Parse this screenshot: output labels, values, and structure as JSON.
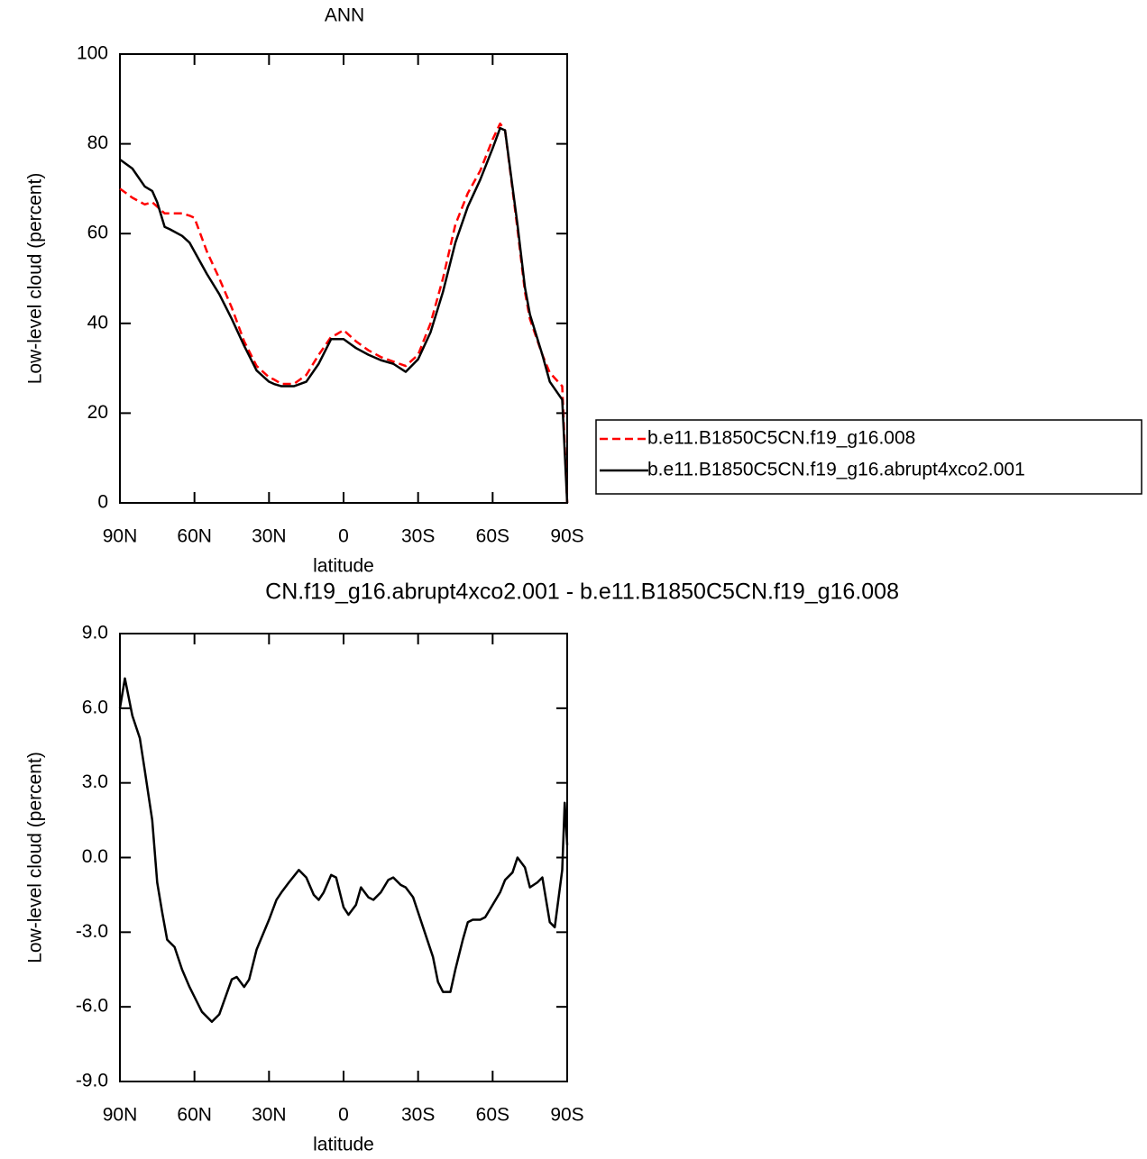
{
  "chart_data": [
    {
      "type": "line",
      "title": "ANN",
      "x_label": "latitude",
      "y_label": "Low-level cloud (percent)",
      "x": [
        90,
        85,
        80,
        77,
        75,
        72,
        70,
        65,
        62,
        60,
        55,
        50,
        45,
        40,
        35,
        30,
        28,
        25,
        20,
        15,
        10,
        5,
        3,
        0,
        -5,
        -10,
        -15,
        -20,
        -25,
        -30,
        -35,
        -40,
        -45,
        -50,
        -55,
        -60,
        -63,
        -65,
        -70,
        -73,
        -75,
        -80,
        -83,
        -88,
        -90
      ],
      "series": [
        {
          "name": "b.e11.B1850C5CN.f19_g16.008",
          "color": "#ff0000",
          "line_style": "dashed",
          "values": [
            70,
            68,
            66.5,
            67,
            66,
            64.5,
            64.5,
            64.5,
            64,
            63.5,
            56,
            50,
            43.5,
            36,
            30.5,
            28,
            27.5,
            26.5,
            26.5,
            28.5,
            33,
            37,
            37.5,
            38.5,
            36,
            34,
            32.5,
            31.5,
            30.5,
            33,
            40,
            50,
            62,
            69,
            74,
            81,
            84.5,
            83,
            61,
            47,
            41,
            33,
            29,
            26,
            0
          ]
        },
        {
          "name": "b.e11.B1850C5CN.f19_g16.abrupt4xco2.001",
          "color": "#000000",
          "line_style": "solid",
          "values": [
            76.5,
            74.5,
            70.5,
            69.5,
            67,
            61.5,
            61,
            59.5,
            58,
            56,
            51,
            46.5,
            41,
            35,
            29.5,
            27,
            26.5,
            26,
            26,
            27,
            31,
            36.5,
            36.5,
            36.5,
            34.5,
            33,
            31.8,
            31,
            29.2,
            32,
            38,
            47,
            58,
            66,
            72,
            79,
            83.5,
            83,
            62,
            48,
            42,
            33,
            27,
            23,
            0
          ]
        }
      ],
      "xlim": [
        90,
        -90
      ],
      "xticks": [
        {
          "value": 90,
          "label": "90N"
        },
        {
          "value": 60,
          "label": "60N"
        },
        {
          "value": 30,
          "label": "30N"
        },
        0,
        {
          "value": -30,
          "label": "30S"
        },
        {
          "value": -60,
          "label": "60S"
        },
        {
          "value": -90,
          "label": "90S"
        }
      ],
      "ylim": [
        0,
        100
      ],
      "yticks": [
        0,
        20,
        40,
        60,
        80,
        100
      ],
      "legend": "right"
    },
    {
      "type": "line",
      "title": "CN.f19_g16.abrupt4xco2.001 - b.e11.B1850C5CN.f19_g16.008",
      "x_label": "latitude",
      "y_label": "Low-level cloud (percent)",
      "x": [
        90,
        88,
        85,
        82,
        80,
        77,
        75,
        73,
        71,
        68,
        65,
        62,
        60,
        57,
        53,
        50,
        45,
        43,
        40,
        38,
        35,
        30,
        27,
        25,
        22,
        18,
        15,
        12,
        10,
        8,
        5,
        3,
        0,
        -2,
        -5,
        -7,
        -10,
        -12,
        -15,
        -18,
        -20,
        -23,
        -25,
        -28,
        -32,
        -36,
        -38,
        -40,
        -43,
        -45,
        -48,
        -50,
        -52,
        -55,
        -57,
        -60,
        -63,
        -65,
        -68,
        -70,
        -73,
        -75,
        -78,
        -80,
        -83,
        -85,
        -88,
        -89,
        -90
      ],
      "values": [
        6.0,
        7.2,
        5.7,
        4.8,
        3.5,
        1.5,
        -1.0,
        -2.2,
        -3.3,
        -3.6,
        -4.5,
        -5.2,
        -5.6,
        -6.2,
        -6.6,
        -6.3,
        -4.9,
        -4.8,
        -5.2,
        -4.9,
        -3.7,
        -2.5,
        -1.7,
        -1.4,
        -1.0,
        -0.5,
        -0.8,
        -1.5,
        -1.7,
        -1.4,
        -0.7,
        -0.8,
        -2.0,
        -2.3,
        -1.9,
        -1.2,
        -1.6,
        -1.7,
        -1.4,
        -0.9,
        -0.8,
        -1.1,
        -1.2,
        -1.6,
        -2.8,
        -4.0,
        -5.0,
        -5.4,
        -5.4,
        -4.5,
        -3.3,
        -2.6,
        -2.5,
        -2.5,
        -2.4,
        -1.9,
        -1.4,
        -0.9,
        -0.6,
        0.0,
        -0.4,
        -1.2,
        -1.0,
        -0.8,
        -2.6,
        -2.8,
        -0.5,
        2.2,
        0.5
      ],
      "color": "#000000",
      "xlim": [
        90,
        -90
      ],
      "xticks": [
        {
          "value": 90,
          "label": "90N"
        },
        {
          "value": 60,
          "label": "60N"
        },
        {
          "value": 30,
          "label": "30N"
        },
        0,
        {
          "value": -30,
          "label": "30S"
        },
        {
          "value": -60,
          "label": "60S"
        },
        {
          "value": -90,
          "label": "90S"
        }
      ],
      "ylim": [
        -9,
        9
      ],
      "yticks": [
        {
          "value": -9,
          "label": "-9.0"
        },
        {
          "value": -6,
          "label": "-6.0"
        },
        {
          "value": -3,
          "label": "-3.0"
        },
        {
          "value": 0,
          "label": "0.0"
        },
        {
          "value": 3,
          "label": "3.0"
        },
        {
          "value": 6,
          "label": "6.0"
        },
        {
          "value": 9,
          "label": "9.0"
        }
      ]
    }
  ]
}
